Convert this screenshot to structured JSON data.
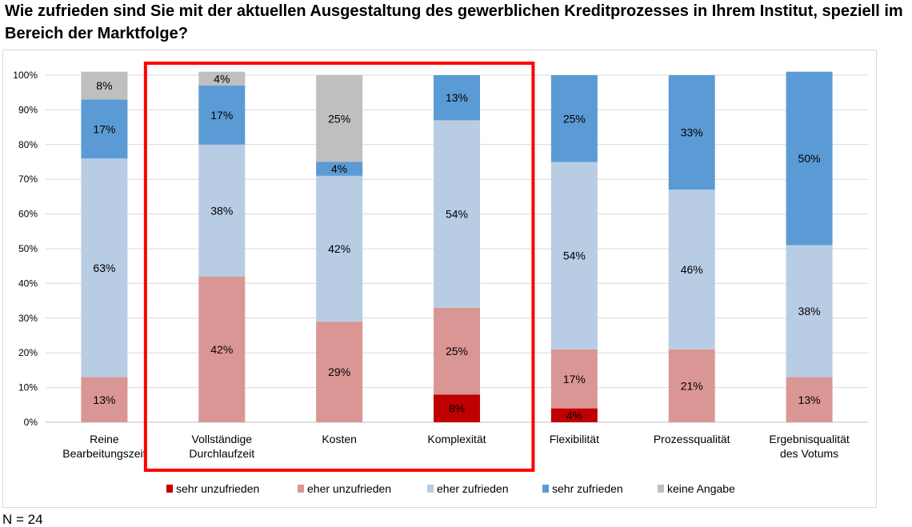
{
  "title": "Wie zufrieden sind Sie mit der aktuellen Ausgestaltung des gewerblichen Kreditprozesses in Ihrem Institut, speziell im Bereich der Marktfolge?",
  "footnote": "N = 24",
  "chart_data": {
    "type": "bar",
    "stacked": true,
    "percent": true,
    "categories": [
      [
        "Reine",
        "Bearbeitungszeit"
      ],
      [
        "Vollständige",
        "Durchlaufzeit"
      ],
      [
        "Kosten"
      ],
      [
        "Komplexität"
      ],
      [
        "Flexibilität"
      ],
      [
        "Prozessqualität"
      ],
      [
        "Ergebnisqualität",
        "des Votums"
      ]
    ],
    "series": [
      {
        "name": "sehr unzufrieden",
        "color": "#c00000",
        "values": [
          0,
          0,
          0,
          8,
          4,
          0,
          0
        ],
        "labels": [
          "",
          "",
          "",
          "8%",
          "4%",
          "",
          ""
        ]
      },
      {
        "name": "eher unzufrieden",
        "color": "#da9694",
        "values": [
          13,
          42,
          29,
          25,
          17,
          21,
          13
        ],
        "labels": [
          "13%",
          "42%",
          "29%",
          "25%",
          "17%",
          "21%",
          "13%"
        ]
      },
      {
        "name": "eher zufrieden",
        "color": "#b8cce4",
        "values": [
          63,
          38,
          42,
          54,
          54,
          46,
          38
        ],
        "labels": [
          "63%",
          "38%",
          "42%",
          "54%",
          "54%",
          "46%",
          "38%"
        ]
      },
      {
        "name": "sehr zufrieden",
        "color": "#5b9bd5",
        "values": [
          17,
          17,
          4,
          13,
          25,
          33,
          50
        ],
        "labels": [
          "17%",
          "17%",
          "4%",
          "13%",
          "25%",
          "33%",
          "50%"
        ]
      },
      {
        "name": "keine Angabe",
        "color": "#bfbfbf",
        "values": [
          8,
          4,
          25,
          0,
          0,
          0,
          0
        ],
        "labels": [
          "8%",
          "4%",
          "25%",
          "",
          "",
          "",
          ""
        ]
      }
    ],
    "yticks": [
      "0%",
      "10%",
      "20%",
      "30%",
      "40%",
      "50%",
      "60%",
      "70%",
      "80%",
      "90%",
      "100%"
    ],
    "ylim": [
      0,
      100
    ],
    "grid": true,
    "legend": "bottom",
    "highlight": {
      "categories": [
        1,
        2,
        3
      ],
      "color": "#ff0000"
    }
  }
}
